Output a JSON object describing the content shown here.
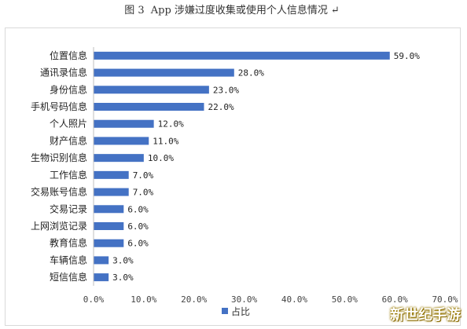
{
  "caption": {
    "figure_no": "图 3",
    "title": "App 涉嫌过度收集或使用个人信息情况",
    "mark": "↵"
  },
  "watermark": "新世纪手游",
  "chart_data": {
    "type": "bar",
    "orientation": "horizontal",
    "categories": [
      "位置信息",
      "通讯录信息",
      "身份信息",
      "手机号码信息",
      "个人照片",
      "财产信息",
      "生物识别信息",
      "工作信息",
      "交易账号信息",
      "交易记录",
      "上网浏览记录",
      "教育信息",
      "车辆信息",
      "短信信息"
    ],
    "series": [
      {
        "name": "占比",
        "values": [
          59.0,
          28.0,
          23.0,
          22.0,
          12.0,
          11.0,
          10.0,
          7.0,
          7.0,
          6.0,
          6.0,
          6.0,
          3.0,
          3.0
        ]
      }
    ],
    "data_labels": [
      "59.0%",
      "28.0%",
      "23.0%",
      "22.0%",
      "12.0%",
      "11.0%",
      "10.0%",
      "7.0%",
      "7.0%",
      "6.0%",
      "6.0%",
      "6.0%",
      "3.0%",
      "3.0%"
    ],
    "xlim": [
      0,
      70
    ],
    "xticks": [
      "0.0%",
      "10.0%",
      "20.0%",
      "30.0%",
      "40.0%",
      "50.0%",
      "60.0%",
      "70.0%"
    ],
    "legend_position": "bottom",
    "grid": false,
    "bar_color": "#4472c4"
  }
}
